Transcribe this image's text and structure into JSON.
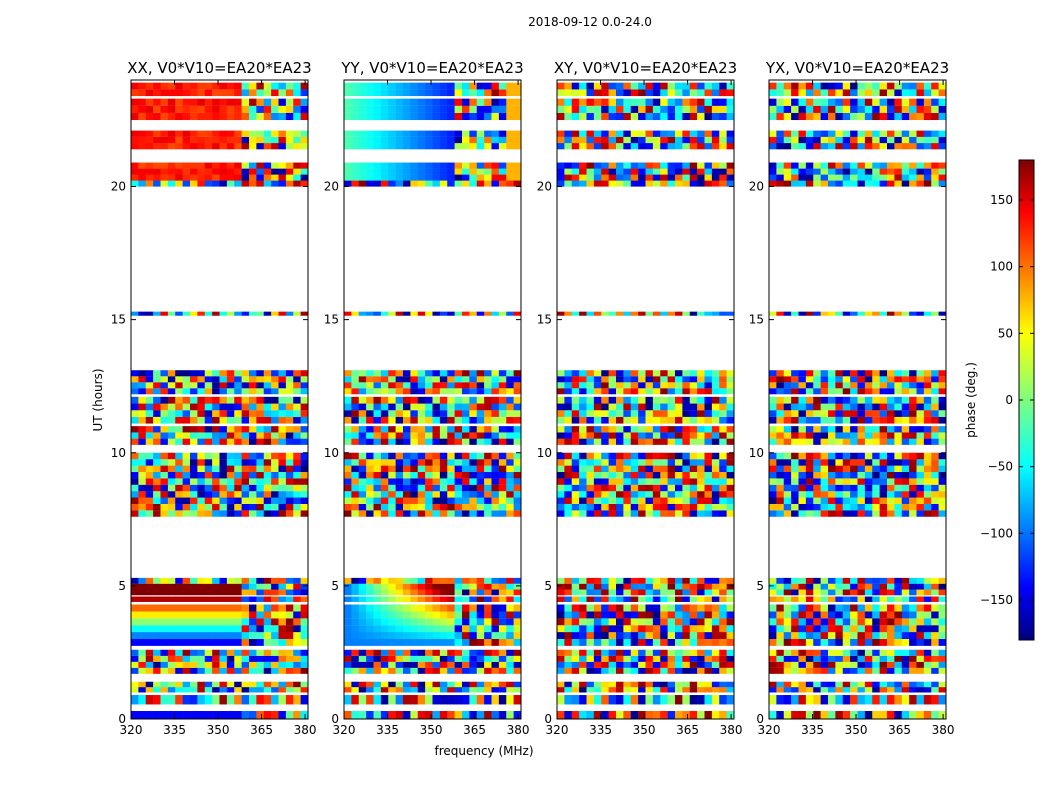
{
  "figure": {
    "suptitle": "2018-09-12 0.0-24.0",
    "xlabel": "frequency (MHz)",
    "ylabel": "UT (hours)",
    "colorbar_label": "phase (deg.)",
    "colormap": "jet"
  },
  "chart_data": {
    "type": "heatmap",
    "panels": [
      {
        "title": "XX, V0*V10=EA20*EA23",
        "pol": "XX"
      },
      {
        "title": "YY, V0*V10=EA20*EA23",
        "pol": "YY"
      },
      {
        "title": "XY, V0*V10=EA20*EA23",
        "pol": "XY"
      },
      {
        "title": "YX, V0*V10=EA20*EA23",
        "pol": "YX"
      }
    ],
    "x": {
      "label": "frequency (MHz)",
      "range": [
        320,
        381
      ],
      "ticks": [
        320,
        335,
        350,
        365,
        380
      ],
      "tick_labels": [
        "320",
        "335",
        "350",
        "365",
        "380"
      ]
    },
    "y": {
      "label": "UT (hours)",
      "range": [
        0,
        24
      ],
      "ticks": [
        0,
        5,
        10,
        15,
        20
      ],
      "tick_labels": [
        "0",
        "5",
        "10",
        "15",
        "20"
      ]
    },
    "colorbar": {
      "label": "phase (deg.)",
      "range": [
        -180,
        180
      ],
      "ticks": [
        -150,
        -100,
        -50,
        0,
        50,
        100,
        150
      ],
      "tick_labels": [
        "−150",
        "−100",
        "−50",
        "0",
        "50",
        "100",
        "150"
      ]
    },
    "data_blocks_hours": [
      [
        0.0,
        0.3
      ],
      [
        0.55,
        0.9
      ],
      [
        1.0,
        1.4
      ],
      [
        1.7,
        2.6
      ],
      [
        2.75,
        4.3
      ],
      [
        4.4,
        4.6
      ],
      [
        4.65,
        5.3
      ],
      [
        7.6,
        10.0
      ],
      [
        10.3,
        11.0
      ],
      [
        11.1,
        12.1
      ],
      [
        12.2,
        13.1
      ],
      [
        15.15,
        15.3
      ],
      [
        20.0,
        20.9
      ],
      [
        21.4,
        22.1
      ],
      [
        22.5,
        23.3
      ],
      [
        23.4,
        23.9
      ]
    ],
    "colors": {
      "axes": "#000000",
      "background": "#ffffff"
    }
  }
}
